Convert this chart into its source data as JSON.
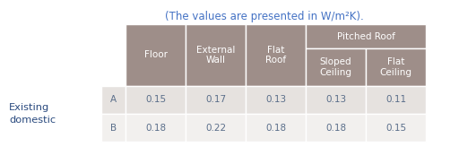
{
  "title": "(The values are presented in W/m²K).",
  "title_color": "#4472c4",
  "title_fontsize": 8.5,
  "header_bg": "#9e8e89",
  "header_text_color": "#ffffff",
  "row_bg_A": "#e6e2df",
  "row_bg_B": "#f2f0ee",
  "data_text_color": "#5a6e8a",
  "label_text_color": "#2a4a7f",
  "fig_bg": "#ffffff",
  "col_headers": [
    "Floor",
    "External\nWall",
    "Flat\nRoof",
    "Sloped\nCeiling",
    "Flat\nCeiling"
  ],
  "group_header": "Pitched Roof",
  "row_labels": [
    "A",
    "B"
  ],
  "row_group_label": "Existing\ndomestic",
  "data": [
    [
      0.15,
      0.17,
      0.13,
      0.13,
      0.11
    ],
    [
      0.18,
      0.22,
      0.18,
      0.18,
      0.15
    ]
  ]
}
